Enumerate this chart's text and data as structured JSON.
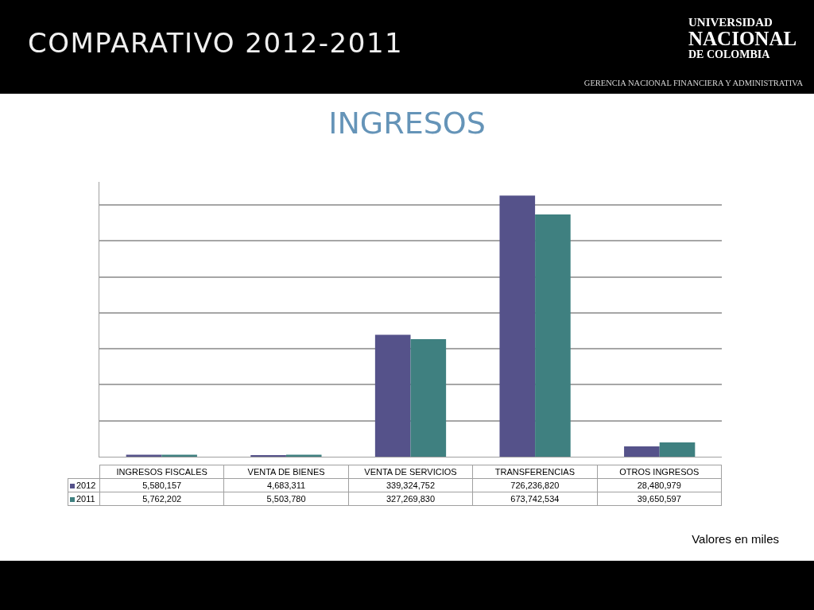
{
  "chart_data": {
    "type": "bar",
    "title": "COMPARATIVO 2012-2011",
    "subtitle": "INGRESOS",
    "annotations": [
      "UNIVERSIDAD\nNACIONAL\nDE COLOMBIA",
      "GERENCIA NACIONAL FINANCIERA Y ADMINISTRATIVA",
      "Valores en miles"
    ],
    "categories": [
      "INGRESOS FISCALES",
      "VENTA DE BIENES",
      "VENTA DE SERVICIOS",
      "TRANSFERENCIAS",
      "OTROS INGRESOS"
    ],
    "series": [
      {
        "name": "2012",
        "color": "#55528a",
        "values": [
          5580157,
          4683311,
          339324752,
          726236820,
          28480979
        ],
        "value_labels": [
          "5,580,157",
          "4,683,311",
          "339,324,752",
          "726,236,820",
          "28,480,979"
        ]
      },
      {
        "name": "2011",
        "color": "#3f8080",
        "values": [
          5762202,
          5503780,
          327269830,
          673742534,
          39650597
        ],
        "value_labels": [
          "5,762,202",
          "5,503,780",
          "327,269,830",
          "673,742,534",
          "39,650,597"
        ]
      }
    ],
    "grid": "y",
    "legend": "bottom left",
    "tick_labels": "x"
  }
}
